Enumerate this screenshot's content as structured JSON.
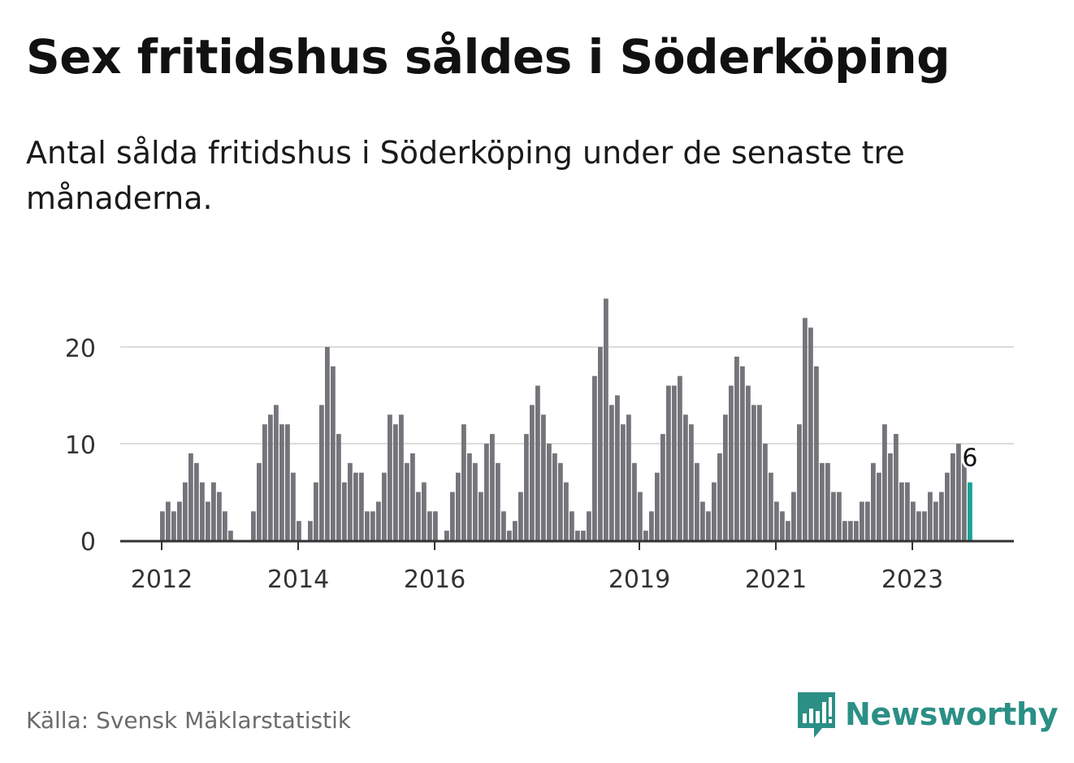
{
  "title": "Sex fritidshus såldes i Söderköping",
  "subtitle": "Antal sålda fritidshus i Söderköping under de senaste tre månaderna.",
  "source": "Källa: Svensk Mäklarstatistik",
  "logo": {
    "name": "Newsworthy",
    "icon": "bar-chart-speech-bubble-icon"
  },
  "colors": {
    "bar": "#75747a",
    "highlight": "#17a398",
    "grid": "#dcdcdc",
    "axis": "#333333",
    "logo": "#2b8f86"
  },
  "chart_data": {
    "type": "bar",
    "x_ticks": [
      "2012",
      "2014",
      "2016",
      "2019",
      "2021",
      "2023"
    ],
    "y_ticks": [
      "0",
      "10",
      "20"
    ],
    "ylim": [
      0,
      25
    ],
    "grid": true,
    "highlight_label": "6",
    "values": [
      3,
      4,
      3,
      4,
      6,
      9,
      8,
      6,
      4,
      6,
      5,
      3,
      1,
      0,
      0,
      0,
      3,
      8,
      12,
      13,
      14,
      12,
      12,
      7,
      2,
      0,
      2,
      6,
      14,
      20,
      18,
      11,
      6,
      8,
      7,
      7,
      3,
      3,
      4,
      7,
      13,
      12,
      13,
      8,
      9,
      5,
      6,
      3,
      3,
      0,
      1,
      5,
      7,
      12,
      9,
      8,
      5,
      10,
      11,
      8,
      3,
      1,
      2,
      5,
      11,
      14,
      16,
      13,
      10,
      9,
      8,
      6,
      3,
      1,
      1,
      3,
      17,
      20,
      25,
      14,
      15,
      12,
      13,
      8,
      5,
      1,
      3,
      7,
      11,
      16,
      16,
      17,
      13,
      12,
      8,
      4,
      3,
      6,
      9,
      13,
      16,
      19,
      18,
      16,
      14,
      14,
      10,
      7,
      4,
      3,
      2,
      5,
      12,
      23,
      22,
      18,
      8,
      8,
      5,
      5,
      2,
      2,
      2,
      4,
      4,
      8,
      7,
      12,
      9,
      11,
      6,
      6,
      4,
      3,
      3,
      5,
      4,
      5,
      7,
      9,
      10,
      8,
      6
    ]
  }
}
